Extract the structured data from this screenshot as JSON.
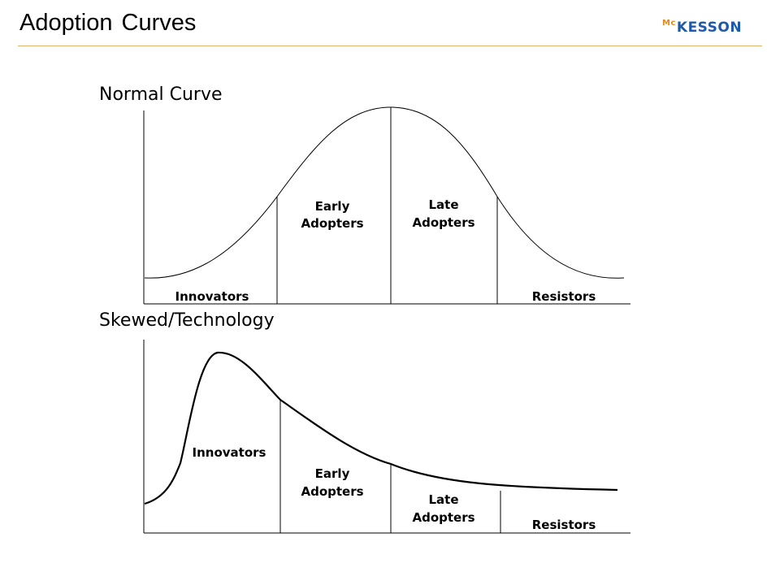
{
  "header": {
    "title": "Adoption Curves",
    "logo_mc": "Mc",
    "logo_rest": "KESSON",
    "rule_color": "#e0b66a",
    "logo_color": "#1f5aa6"
  },
  "normal": {
    "title": "Normal Curve",
    "labels": {
      "innovators": "Innovators",
      "early_1": "Early",
      "early_2": "Adopters",
      "late_1": "Late",
      "late_2": "Adopters",
      "resistors": "Resistors"
    }
  },
  "skewed": {
    "title": "Skewed/Technology",
    "labels": {
      "innovators": "Innovators",
      "early_1": "Early",
      "early_2": "Adopters",
      "late_1": "Late",
      "late_2": "Adopters",
      "resistors": "Resistors"
    }
  }
}
